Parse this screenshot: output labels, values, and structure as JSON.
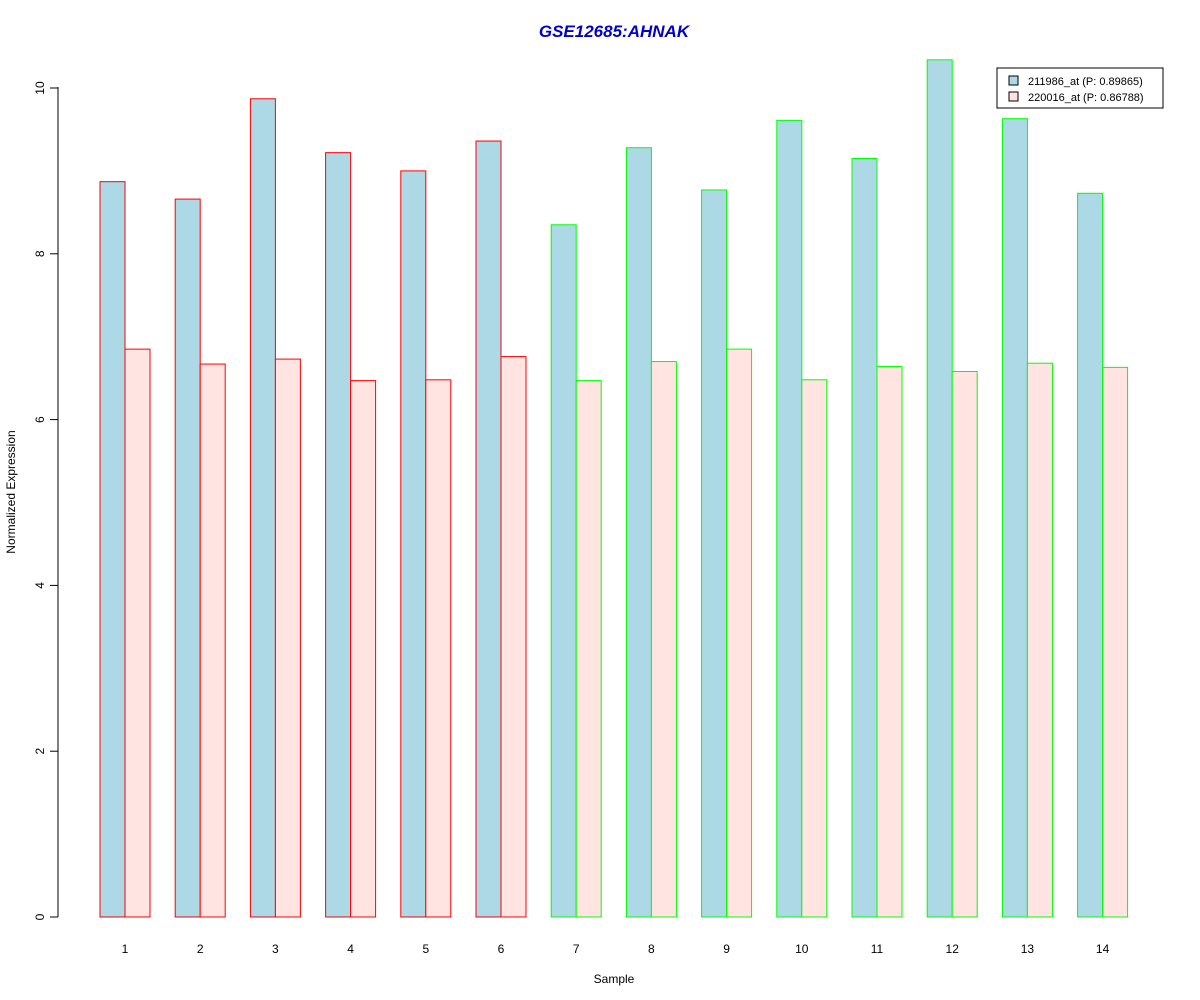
{
  "chart_data": {
    "type": "bar",
    "title": "GSE12685:AHNAK",
    "xlabel": "Sample",
    "ylabel": "Normalized Expression",
    "categories": [
      "1",
      "2",
      "3",
      "4",
      "5",
      "6",
      "7",
      "8",
      "9",
      "10",
      "11",
      "12",
      "13",
      "14"
    ],
    "y_ticks": [
      "0",
      "2",
      "4",
      "6",
      "8",
      "10"
    ],
    "ylim": [
      0,
      10.4
    ],
    "grid": false,
    "legend_position": "top-right",
    "series": [
      {
        "name": "211986_at (P: 0.89865)",
        "fill": "#add8e6",
        "values": [
          8.87,
          8.66,
          9.87,
          9.22,
          9.0,
          9.36,
          8.35,
          9.28,
          8.77,
          9.61,
          9.15,
          10.34,
          9.63,
          8.73
        ]
      },
      {
        "name": "220016_at (P: 0.86788)",
        "fill": "#ffe4e1",
        "values": [
          6.85,
          6.67,
          6.73,
          6.47,
          6.48,
          6.76,
          6.47,
          6.7,
          6.85,
          6.48,
          6.64,
          6.58,
          6.68,
          6.63
        ]
      }
    ],
    "group_border_colors": [
      "#ff0000",
      "#ff0000",
      "#ff0000",
      "#ff0000",
      "#ff0000",
      "#ff0000",
      "#00ff00",
      "#00ff00",
      "#00ff00",
      "#00ff00",
      "#00ff00",
      "#00ff00",
      "#00ff00",
      "#00ff00"
    ],
    "title_color": "#0000cd"
  }
}
